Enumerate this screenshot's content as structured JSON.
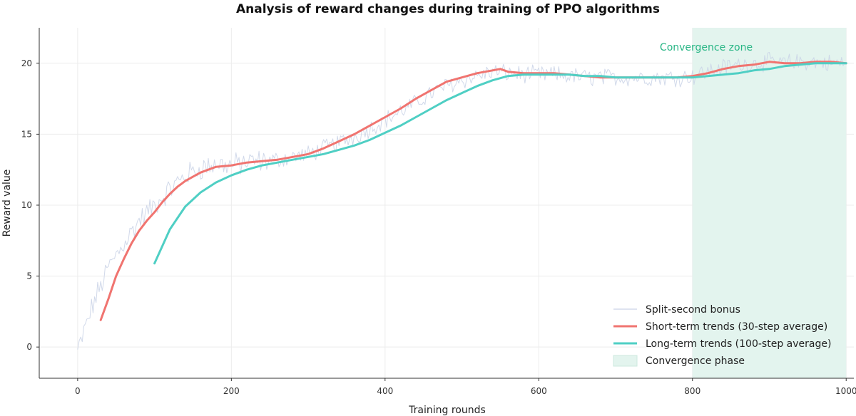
{
  "chart_data": {
    "type": "line",
    "title": "Analysis of reward changes during training of PPO algorithms",
    "xlabel": "Training rounds",
    "ylabel": "Reward value",
    "xlim": [
      -50,
      1010
    ],
    "ylim": [
      -2.2,
      22.5
    ],
    "x_ticks": [
      0,
      200,
      400,
      600,
      800,
      1000
    ],
    "y_ticks": [
      0,
      5,
      10,
      15,
      20
    ],
    "grid": true,
    "legend_position": "bottom-right",
    "colors": {
      "raw": "#c9d2e6",
      "short": "#f07470",
      "long": "#4fcfc4",
      "zone_fill": "#e3f4ee",
      "annotation": "#26b584"
    },
    "series": [
      {
        "name": "Split-second bonus",
        "style": "raw",
        "base_x": [
          0,
          20,
          40,
          60,
          80,
          100,
          120,
          140,
          160,
          180,
          200,
          220,
          240,
          260,
          280,
          300,
          320,
          340,
          360,
          380,
          400,
          420,
          440,
          460,
          480,
          500,
          520,
          540,
          560,
          580,
          600,
          620,
          640,
          660,
          680,
          700,
          720,
          740,
          760,
          780,
          800,
          820,
          840,
          860,
          880,
          900,
          920,
          940,
          960,
          980,
          1000
        ],
        "base_y": [
          -0.3,
          3.0,
          5.6,
          7.3,
          8.9,
          10.0,
          11.1,
          12.1,
          12.6,
          12.9,
          12.8,
          13.0,
          13.1,
          13.2,
          13.4,
          13.6,
          14.0,
          14.4,
          14.8,
          15.4,
          16.0,
          16.6,
          17.2,
          17.9,
          18.4,
          18.8,
          19.1,
          19.4,
          19.3,
          19.2,
          19.2,
          19.2,
          19.1,
          19.0,
          19.0,
          19.0,
          19.0,
          19.0,
          19.0,
          19.0,
          19.1,
          19.4,
          19.7,
          19.9,
          20.0,
          20.1,
          20.0,
          20.1,
          20.1,
          20.0,
          20.0
        ],
        "noise_amplitude": 0.55
      },
      {
        "name": "Short-term trends (30-step average)",
        "style": "short",
        "x": [
          30,
          40,
          50,
          60,
          70,
          80,
          90,
          100,
          110,
          120,
          130,
          140,
          150,
          160,
          170,
          180,
          190,
          200,
          220,
          240,
          260,
          280,
          300,
          320,
          340,
          360,
          380,
          400,
          420,
          440,
          460,
          480,
          500,
          520,
          540,
          550,
          560,
          580,
          600,
          620,
          640,
          660,
          680,
          700,
          720,
          740,
          760,
          780,
          800,
          820,
          840,
          860,
          880,
          900,
          920,
          940,
          960,
          980,
          1000
        ],
        "y": [
          1.9,
          3.4,
          5.0,
          6.2,
          7.3,
          8.2,
          8.9,
          9.5,
          10.2,
          10.8,
          11.3,
          11.7,
          12.0,
          12.3,
          12.5,
          12.7,
          12.75,
          12.8,
          13.0,
          13.1,
          13.2,
          13.4,
          13.6,
          14.0,
          14.5,
          15.0,
          15.6,
          16.2,
          16.8,
          17.5,
          18.1,
          18.7,
          19.0,
          19.3,
          19.5,
          19.6,
          19.4,
          19.3,
          19.3,
          19.3,
          19.2,
          19.1,
          19.0,
          19.0,
          19.0,
          19.0,
          19.0,
          19.0,
          19.1,
          19.3,
          19.6,
          19.8,
          19.9,
          20.1,
          20.0,
          20.0,
          20.1,
          20.1,
          20.0
        ]
      },
      {
        "name": "Long-term trends (100-step average)",
        "style": "long",
        "x": [
          100,
          120,
          140,
          160,
          180,
          200,
          220,
          240,
          260,
          280,
          300,
          320,
          340,
          360,
          380,
          400,
          420,
          440,
          460,
          480,
          500,
          520,
          540,
          560,
          580,
          600,
          620,
          640,
          660,
          680,
          700,
          720,
          740,
          760,
          780,
          800,
          820,
          840,
          860,
          880,
          900,
          920,
          940,
          960,
          980,
          1000
        ],
        "y": [
          5.9,
          8.3,
          9.9,
          10.9,
          11.6,
          12.1,
          12.5,
          12.8,
          13.0,
          13.2,
          13.4,
          13.6,
          13.9,
          14.2,
          14.6,
          15.1,
          15.6,
          16.2,
          16.8,
          17.4,
          17.9,
          18.4,
          18.8,
          19.1,
          19.2,
          19.2,
          19.2,
          19.2,
          19.1,
          19.1,
          19.0,
          19.0,
          19.0,
          19.0,
          19.0,
          19.0,
          19.1,
          19.2,
          19.3,
          19.5,
          19.6,
          19.8,
          19.9,
          20.0,
          20.0,
          20.0
        ]
      }
    ],
    "shaded_region": {
      "x_start": 800,
      "x_end": 1000,
      "label": "Convergence phase",
      "annotation": "Convergence zone"
    }
  }
}
